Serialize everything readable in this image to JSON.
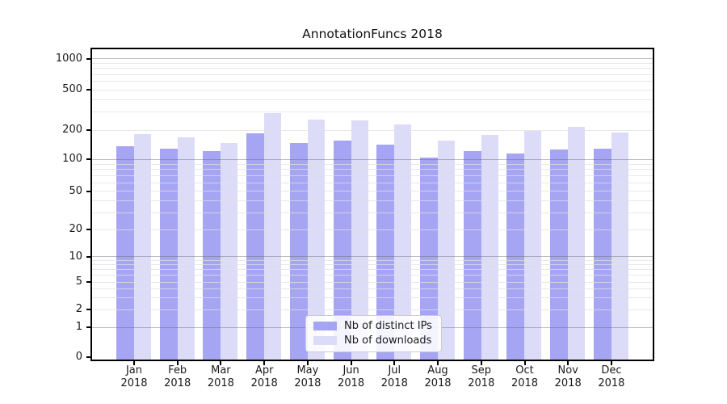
{
  "title": "AnnotationFuncs 2018",
  "legend": {
    "items": [
      {
        "label": "Nb of distinct IPs",
        "color": "#a5a5f3"
      },
      {
        "label": "Nb of downloads",
        "color": "#dcdcf9"
      }
    ]
  },
  "y_axis": {
    "tick_labels": [
      "1000",
      "500",
      "200",
      "100",
      "50",
      "20",
      "10",
      "5",
      "2",
      "1",
      "0"
    ],
    "tick_values": [
      1000,
      500,
      200,
      100,
      50,
      20,
      10,
      5,
      2,
      1,
      0
    ]
  },
  "x_axis": {
    "tick_labels": [
      {
        "month": "Jan",
        "year": "2018"
      },
      {
        "month": "Feb",
        "year": "2018"
      },
      {
        "month": "Mar",
        "year": "2018"
      },
      {
        "month": "Apr",
        "year": "2018"
      },
      {
        "month": "May",
        "year": "2018"
      },
      {
        "month": "Jun",
        "year": "2018"
      },
      {
        "month": "Jul",
        "year": "2018"
      },
      {
        "month": "Aug",
        "year": "2018"
      },
      {
        "month": "Sep",
        "year": "2018"
      },
      {
        "month": "Oct",
        "year": "2018"
      },
      {
        "month": "Nov",
        "year": "2018"
      },
      {
        "month": "Dec",
        "year": "2018"
      }
    ]
  },
  "chart_data": {
    "type": "bar",
    "title": "AnnotationFuncs 2018",
    "categories": [
      "Jan 2018",
      "Feb 2018",
      "Mar 2018",
      "Apr 2018",
      "May 2018",
      "Jun 2018",
      "Jul 2018",
      "Aug 2018",
      "Sep 2018",
      "Oct 2018",
      "Nov 2018",
      "Dec 2018"
    ],
    "series": [
      {
        "name": "Nb of distinct IPs",
        "color": "#a5a5f3",
        "values": [
          136,
          128,
          122,
          185,
          148,
          155,
          142,
          105,
          121,
          114,
          127,
          129
        ]
      },
      {
        "name": "Nb of downloads",
        "color": "#dcdcf9",
        "values": [
          182,
          168,
          148,
          295,
          254,
          250,
          227,
          157,
          178,
          195,
          215,
          189
        ]
      }
    ],
    "yscale": "symlog",
    "yticks": [
      0,
      1,
      2,
      5,
      10,
      20,
      50,
      100,
      200,
      500,
      1000
    ],
    "ylim": [
      0,
      1000
    ],
    "grid": "both",
    "legend_position": "lower center"
  },
  "colors": {
    "distinct_ips": "#a5a5f3",
    "downloads": "#dcdcf9",
    "grid_major": "#bfbfc4",
    "grid_minor": "#ececef",
    "axis": "#000000",
    "text": "#1a1a1a",
    "background": "#ffffff"
  }
}
